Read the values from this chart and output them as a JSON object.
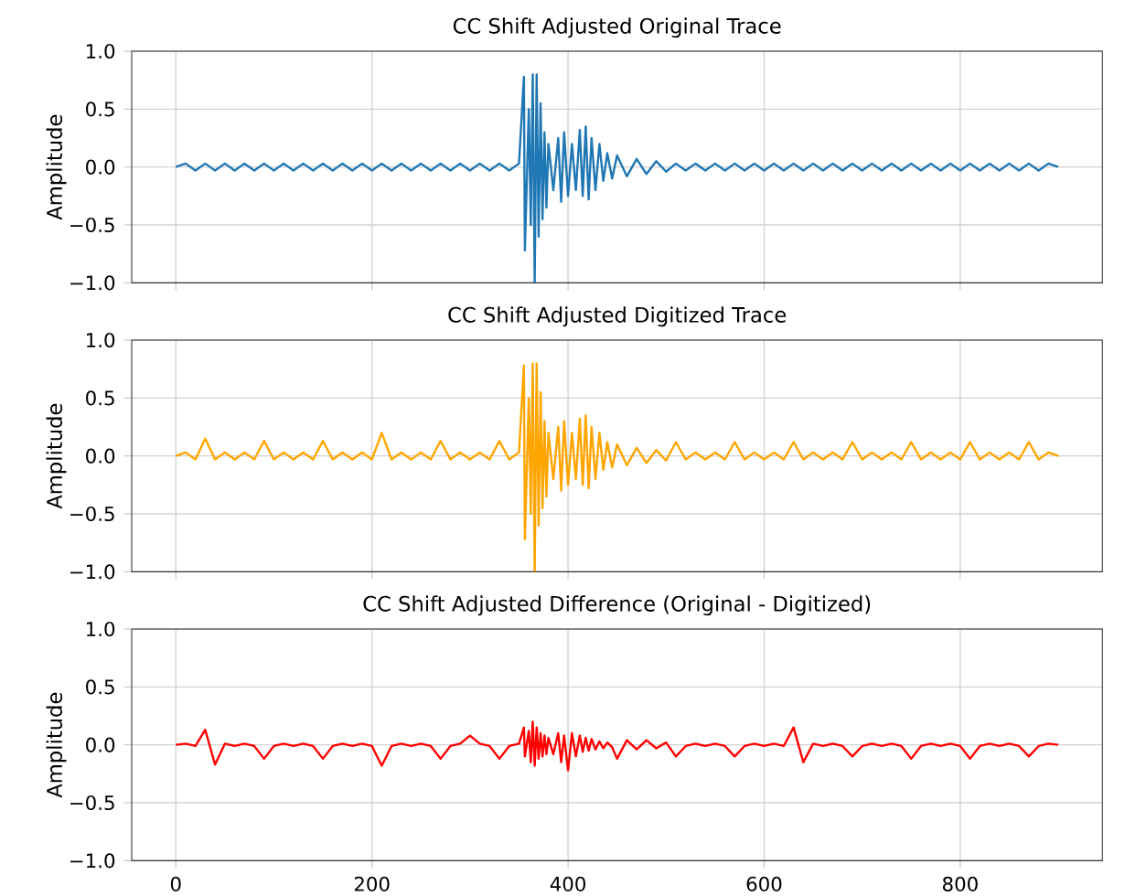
{
  "chart_data": [
    {
      "type": "line",
      "title": "CC Shift Adjusted Original Trace",
      "ylabel": "Amplitude",
      "xlim": [
        -45,
        945
      ],
      "ylim": [
        -1.0,
        1.0
      ],
      "xticks": [
        0,
        200,
        400,
        600,
        800
      ],
      "yticks": [
        {
          "value": -1.0,
          "label": "−1.0"
        },
        {
          "value": -0.5,
          "label": "−0.5"
        },
        {
          "value": 0.0,
          "label": "0.0"
        },
        {
          "value": 0.5,
          "label": "0.5"
        },
        {
          "value": 1.0,
          "label": "1.0"
        }
      ],
      "grid": true,
      "tick_labels": "y",
      "x": [
        0,
        10,
        20,
        30,
        40,
        50,
        60,
        70,
        80,
        90,
        100,
        110,
        120,
        130,
        140,
        150,
        160,
        170,
        180,
        190,
        200,
        210,
        220,
        230,
        240,
        250,
        260,
        270,
        280,
        290,
        300,
        310,
        320,
        330,
        340,
        350,
        355,
        356,
        360,
        362,
        364,
        366,
        368,
        370,
        372,
        374,
        376,
        378,
        380,
        385,
        390,
        393,
        396,
        400,
        404,
        408,
        412,
        415,
        418,
        421,
        424,
        428,
        432,
        436,
        440,
        445,
        450,
        460,
        470,
        480,
        490,
        500,
        510,
        520,
        530,
        540,
        550,
        560,
        570,
        580,
        590,
        600,
        610,
        620,
        630,
        640,
        650,
        660,
        670,
        680,
        690,
        700,
        710,
        720,
        730,
        740,
        750,
        760,
        770,
        780,
        790,
        800,
        810,
        820,
        830,
        840,
        850,
        860,
        870,
        880,
        890,
        900
      ],
      "series": [
        {
          "color": "#1f77b4",
          "values": [
            0,
            0.03,
            -0.03,
            0.03,
            -0.03,
            0.03,
            -0.03,
            0.03,
            -0.03,
            0.03,
            -0.03,
            0.03,
            -0.03,
            0.03,
            -0.03,
            0.03,
            -0.03,
            0.03,
            -0.03,
            0.03,
            -0.03,
            0.03,
            -0.03,
            0.03,
            -0.03,
            0.03,
            -0.03,
            0.03,
            -0.03,
            0.03,
            -0.03,
            0.03,
            -0.03,
            0.03,
            -0.03,
            0.03,
            0.78,
            -0.72,
            0.5,
            -0.5,
            0.8,
            -1.0,
            0.8,
            -0.6,
            0.55,
            -0.45,
            0.3,
            -0.35,
            0.2,
            -0.2,
            0.25,
            -0.3,
            0.3,
            -0.25,
            0.2,
            -0.2,
            0.32,
            -0.25,
            0.35,
            -0.28,
            0.25,
            -0.2,
            0.2,
            -0.12,
            0.12,
            -0.1,
            0.1,
            -0.08,
            0.07,
            -0.06,
            0.05,
            -0.04,
            0.03,
            -0.03,
            0.03,
            -0.03,
            0.03,
            -0.03,
            0.03,
            -0.03,
            0.03,
            -0.03,
            0.03,
            -0.03,
            0.03,
            -0.03,
            0.03,
            -0.03,
            0.03,
            -0.03,
            0.03,
            -0.03,
            0.03,
            -0.03,
            0.03,
            -0.03,
            0.03,
            -0.03,
            0.03,
            -0.03,
            0.03,
            -0.03,
            0.03,
            -0.03,
            0.03,
            -0.03,
            0.03,
            -0.03,
            0.03,
            -0.03,
            0.03,
            0
          ]
        }
      ]
    },
    {
      "type": "line",
      "title": "CC Shift Adjusted Digitized Trace",
      "ylabel": "Amplitude",
      "xlim": [
        -45,
        945
      ],
      "ylim": [
        -1.0,
        1.0
      ],
      "xticks": [
        0,
        200,
        400,
        600,
        800
      ],
      "yticks": [
        {
          "value": -1.0,
          "label": "−1.0"
        },
        {
          "value": -0.5,
          "label": "−0.5"
        },
        {
          "value": 0.0,
          "label": "0.0"
        },
        {
          "value": 0.5,
          "label": "0.5"
        },
        {
          "value": 1.0,
          "label": "1.0"
        }
      ],
      "grid": true,
      "tick_labels": "y",
      "x": [
        0,
        10,
        20,
        30,
        40,
        50,
        60,
        70,
        80,
        90,
        100,
        110,
        120,
        130,
        140,
        150,
        160,
        170,
        180,
        190,
        200,
        210,
        220,
        230,
        240,
        250,
        260,
        270,
        280,
        290,
        300,
        310,
        320,
        330,
        340,
        350,
        355,
        356,
        360,
        362,
        364,
        366,
        368,
        370,
        372,
        374,
        376,
        378,
        380,
        385,
        390,
        393,
        396,
        400,
        404,
        408,
        412,
        415,
        418,
        421,
        424,
        428,
        432,
        436,
        440,
        445,
        450,
        460,
        470,
        480,
        490,
        500,
        510,
        520,
        530,
        540,
        550,
        560,
        570,
        580,
        590,
        600,
        610,
        620,
        630,
        640,
        650,
        660,
        670,
        680,
        690,
        700,
        710,
        720,
        730,
        740,
        750,
        760,
        770,
        780,
        790,
        800,
        810,
        820,
        830,
        840,
        850,
        860,
        870,
        880,
        890,
        900
      ],
      "series": [
        {
          "color": "#ffa500",
          "values": [
            0,
            0.03,
            -0.03,
            0.15,
            -0.03,
            0.03,
            -0.03,
            0.03,
            -0.03,
            0.13,
            -0.03,
            0.03,
            -0.03,
            0.03,
            -0.03,
            0.13,
            -0.03,
            0.03,
            -0.03,
            0.03,
            -0.03,
            0.2,
            -0.03,
            0.03,
            -0.03,
            0.03,
            -0.03,
            0.13,
            -0.03,
            0.03,
            -0.03,
            0.03,
            -0.03,
            0.13,
            -0.03,
            0.03,
            0.78,
            -0.72,
            0.5,
            -0.5,
            0.8,
            -1.0,
            0.8,
            -0.6,
            0.55,
            -0.45,
            0.3,
            -0.35,
            0.2,
            -0.2,
            0.25,
            -0.3,
            0.3,
            -0.25,
            0.2,
            -0.2,
            0.32,
            -0.25,
            0.35,
            -0.28,
            0.25,
            -0.2,
            0.2,
            -0.12,
            0.12,
            -0.1,
            0.1,
            -0.08,
            0.07,
            -0.06,
            0.05,
            -0.04,
            0.12,
            -0.03,
            0.03,
            -0.03,
            0.03,
            -0.03,
            0.12,
            -0.03,
            0.03,
            -0.03,
            0.03,
            -0.03,
            0.12,
            -0.03,
            0.03,
            -0.03,
            0.03,
            -0.03,
            0.12,
            -0.03,
            0.03,
            -0.03,
            0.03,
            -0.03,
            0.12,
            -0.03,
            0.03,
            -0.03,
            0.03,
            -0.03,
            0.12,
            -0.03,
            0.03,
            -0.03,
            0.03,
            -0.03,
            0.12,
            -0.03,
            0.03,
            0
          ]
        }
      ]
    },
    {
      "type": "line",
      "title": "CC Shift Adjusted Difference (Original - Digitized)",
      "ylabel": "Amplitude",
      "xlim": [
        -45,
        945
      ],
      "ylim": [
        -1.0,
        1.0
      ],
      "xticks": [
        0,
        200,
        400,
        600,
        800
      ],
      "yticks": [
        {
          "value": -1.0,
          "label": "−1.0"
        },
        {
          "value": -0.5,
          "label": "−0.5"
        },
        {
          "value": 0.0,
          "label": "0.0"
        },
        {
          "value": 0.5,
          "label": "0.5"
        },
        {
          "value": 1.0,
          "label": "1.0"
        }
      ],
      "grid": true,
      "x": [
        0,
        10,
        20,
        30,
        40,
        50,
        60,
        70,
        80,
        90,
        100,
        110,
        120,
        130,
        140,
        150,
        160,
        170,
        180,
        190,
        200,
        210,
        220,
        230,
        240,
        250,
        260,
        270,
        280,
        290,
        300,
        310,
        320,
        330,
        340,
        350,
        355,
        356,
        360,
        362,
        364,
        366,
        368,
        370,
        372,
        374,
        376,
        378,
        380,
        385,
        390,
        393,
        396,
        400,
        404,
        408,
        412,
        415,
        418,
        421,
        424,
        428,
        432,
        436,
        440,
        445,
        450,
        460,
        470,
        480,
        490,
        500,
        510,
        520,
        530,
        540,
        550,
        560,
        570,
        580,
        590,
        600,
        610,
        620,
        630,
        640,
        650,
        660,
        670,
        680,
        690,
        700,
        710,
        720,
        730,
        740,
        750,
        760,
        770,
        780,
        790,
        800,
        810,
        820,
        830,
        840,
        850,
        860,
        870,
        880,
        890,
        900
      ],
      "series": [
        {
          "color": "#ff0000",
          "values": [
            0,
            0.01,
            -0.01,
            0.13,
            -0.17,
            0.01,
            -0.01,
            0.01,
            -0.01,
            -0.12,
            -0.01,
            0.01,
            -0.01,
            0.01,
            -0.01,
            -0.12,
            -0.01,
            0.01,
            -0.01,
            0.01,
            -0.01,
            -0.18,
            -0.01,
            0.01,
            -0.01,
            0.01,
            -0.01,
            -0.12,
            -0.01,
            0.01,
            0.08,
            0.01,
            -0.01,
            -0.12,
            -0.01,
            0.01,
            0.15,
            -0.1,
            0.12,
            -0.15,
            0.2,
            -0.18,
            0.15,
            -0.12,
            0.1,
            -0.1,
            0.08,
            -0.08,
            0.06,
            -0.08,
            0.1,
            -0.15,
            0.08,
            -0.22,
            0.1,
            -0.1,
            0.08,
            -0.06,
            0.06,
            -0.05,
            0.05,
            -0.04,
            0.03,
            -0.03,
            0.02,
            -0.02,
            -0.12,
            0.04,
            -0.04,
            0.04,
            -0.03,
            0.02,
            -0.1,
            -0.01,
            0.01,
            -0.01,
            0.01,
            -0.01,
            -0.1,
            -0.01,
            0.01,
            -0.01,
            0.01,
            -0.01,
            0.15,
            -0.15,
            0.01,
            -0.01,
            0.01,
            -0.01,
            -0.1,
            -0.01,
            0.01,
            -0.01,
            0.01,
            -0.01,
            -0.12,
            -0.01,
            0.01,
            -0.01,
            0.01,
            -0.01,
            -0.12,
            -0.01,
            0.01,
            -0.01,
            0.01,
            -0.01,
            -0.1,
            -0.01,
            0.01,
            0
          ]
        }
      ]
    }
  ]
}
